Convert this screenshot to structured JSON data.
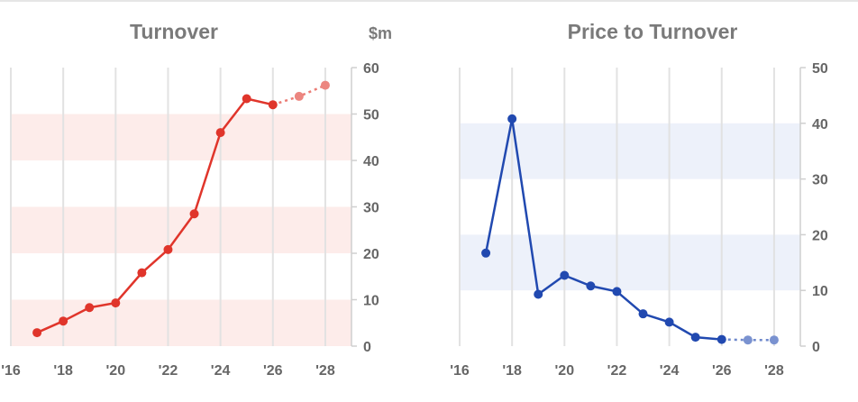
{
  "chart_data": [
    {
      "type": "line",
      "title": "Turnover",
      "unit": "$m",
      "x": [
        2017,
        2018,
        2019,
        2020,
        2021,
        2022,
        2023,
        2024,
        2025,
        2026,
        2027,
        2028
      ],
      "series": [
        {
          "values": [
            2.9,
            5.4,
            8.3,
            9.3,
            15.8,
            20.8,
            28.5,
            46.0,
            53.3,
            52.0,
            53.8,
            56.2
          ],
          "forecast_from_index": 10,
          "color": "#e0352b"
        }
      ],
      "xlim": [
        2016,
        2029
      ],
      "ylim": [
        0,
        60
      ],
      "xticks": [
        2016,
        2018,
        2020,
        2022,
        2024,
        2026,
        2028
      ],
      "xtick_labels": [
        "'16",
        "'18",
        "'20",
        "'22",
        "'24",
        "'26",
        "'28"
      ],
      "yticks": [
        0,
        10,
        20,
        30,
        40,
        50,
        60
      ],
      "ytick_labels": [
        "0",
        "10",
        "20",
        "30",
        "40",
        "50",
        "60"
      ],
      "band_color": "#fdecea",
      "grid": true,
      "yaxis_side": "right"
    },
    {
      "type": "line",
      "title": "Price to Turnover",
      "x": [
        2017,
        2018,
        2019,
        2020,
        2021,
        2022,
        2023,
        2024,
        2025,
        2026,
        2027,
        2028
      ],
      "series": [
        {
          "values": [
            16.7,
            40.8,
            9.3,
            12.7,
            10.8,
            9.8,
            5.8,
            4.3,
            1.6,
            1.2,
            1.1,
            1.1
          ],
          "forecast_from_index": 10,
          "color": "#2149b0"
        }
      ],
      "xlim": [
        2016,
        2029
      ],
      "ylim": [
        0,
        50
      ],
      "xticks": [
        2016,
        2018,
        2020,
        2022,
        2024,
        2026,
        2028
      ],
      "xtick_labels": [
        "'16",
        "'18",
        "'20",
        "'22",
        "'24",
        "'26",
        "'28"
      ],
      "yticks": [
        0,
        10,
        20,
        30,
        40,
        50
      ],
      "ytick_labels": [
        "0",
        "10",
        "20",
        "30",
        "40",
        "50"
      ],
      "band_color": "#edf1fa",
      "grid": true,
      "yaxis_side": "right"
    }
  ]
}
